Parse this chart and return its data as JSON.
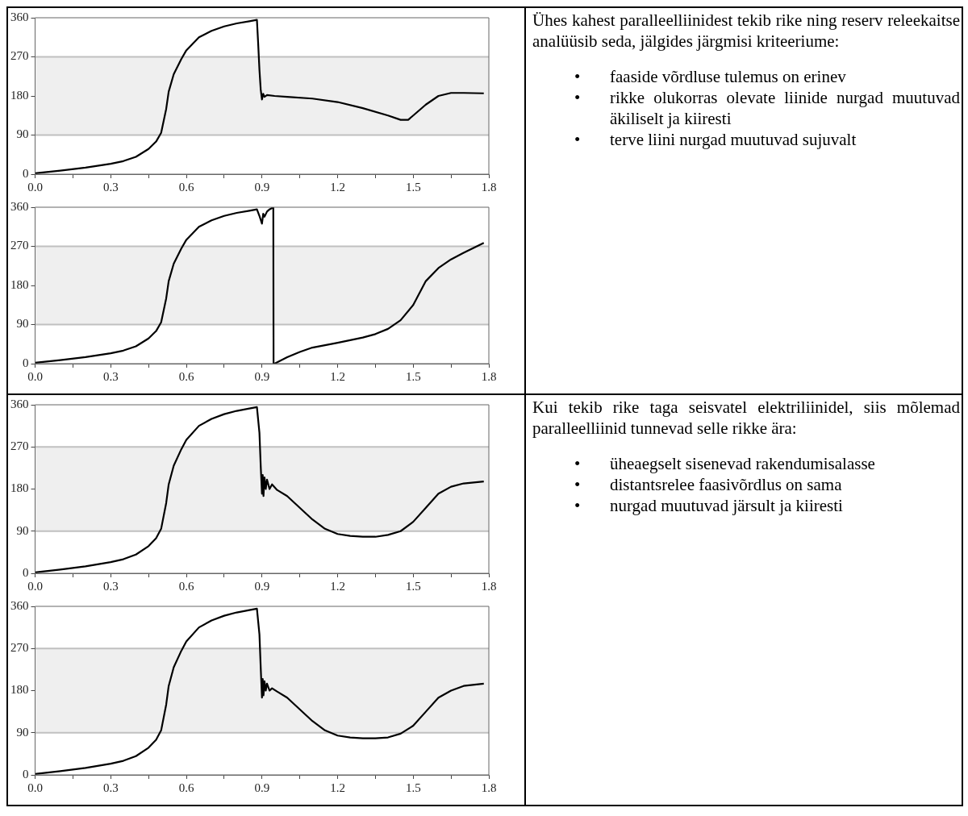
{
  "chart_data": [
    {
      "type": "line",
      "color": "#000000",
      "xlim": [
        0,
        1.8
      ],
      "ylim": [
        0,
        360
      ],
      "xticks": [
        {
          "value": 0,
          "label": "0.0"
        },
        {
          "value": 0.15,
          "label": null
        },
        0.3,
        {
          "value": 0.45,
          "label": null
        },
        0.6,
        {
          "value": 0.75,
          "label": null
        },
        0.9,
        {
          "value": 1.05,
          "label": null
        },
        1.2,
        {
          "value": 1.35,
          "label": null
        },
        1.5,
        {
          "value": 1.65,
          "label": null
        },
        1.8
      ],
      "yticks": [
        0,
        90,
        180,
        270,
        360
      ],
      "bands": [
        {
          "axis": "y",
          "from": 90,
          "to": 270,
          "color": "#c0c0c0"
        }
      ],
      "x": [
        0,
        0.1,
        0.2,
        0.3,
        0.35,
        0.4,
        0.45,
        0.48,
        0.5,
        0.52,
        0.53,
        0.55,
        0.58,
        0.6,
        0.65,
        0.7,
        0.75,
        0.8,
        0.85,
        0.88,
        0.885,
        0.89,
        0.895,
        0.9,
        0.905,
        0.91,
        0.92,
        0.95,
        1.0,
        1.1,
        1.2,
        1.3,
        1.4,
        1.45,
        1.48,
        1.5,
        1.55,
        1.6,
        1.65,
        1.7,
        1.78
      ],
      "values": [
        2,
        8,
        15,
        24,
        30,
        40,
        58,
        75,
        95,
        150,
        190,
        230,
        265,
        285,
        315,
        330,
        340,
        347,
        352,
        355,
        300,
        240,
        195,
        172,
        185,
        178,
        182,
        180,
        178,
        174,
        166,
        152,
        135,
        125,
        125,
        135,
        160,
        180,
        187,
        187,
        186
      ]
    },
    {
      "type": "line",
      "color": "#000000",
      "xlim": [
        0,
        1.8
      ],
      "ylim": [
        0,
        360
      ],
      "xticks": [
        {
          "value": 0,
          "label": "0.0"
        },
        {
          "value": 0.15,
          "label": null
        },
        0.3,
        {
          "value": 0.45,
          "label": null
        },
        0.6,
        {
          "value": 0.75,
          "label": null
        },
        0.9,
        {
          "value": 1.05,
          "label": null
        },
        1.2,
        {
          "value": 1.35,
          "label": null
        },
        1.5,
        {
          "value": 1.65,
          "label": null
        },
        1.8
      ],
      "yticks": [
        0,
        90,
        180,
        270,
        360
      ],
      "bands": [
        {
          "axis": "y",
          "from": 90,
          "to": 270,
          "color": "#c0c0c0"
        }
      ],
      "x": [
        0,
        0.1,
        0.2,
        0.3,
        0.35,
        0.4,
        0.45,
        0.48,
        0.5,
        0.52,
        0.53,
        0.55,
        0.58,
        0.6,
        0.65,
        0.7,
        0.75,
        0.8,
        0.85,
        0.88,
        0.89,
        0.9,
        0.905,
        0.91,
        0.92,
        0.93,
        0.945,
        0.946,
        0.95,
        1.0,
        1.05,
        1.1,
        1.2,
        1.3,
        1.35,
        1.4,
        1.45,
        1.5,
        1.55,
        1.6,
        1.65,
        1.7,
        1.78
      ],
      "values": [
        2,
        8,
        15,
        24,
        30,
        40,
        58,
        75,
        95,
        150,
        190,
        230,
        265,
        285,
        315,
        330,
        340,
        347,
        352,
        355,
        340,
        322,
        345,
        338,
        350,
        355,
        360,
        0,
        0,
        15,
        27,
        37,
        48,
        60,
        68,
        80,
        100,
        135,
        190,
        220,
        240,
        255,
        278
      ]
    },
    {
      "type": "other",
      "title": "Ühes kahest paralleelliinidest tekib rike ning reserv releekaitse analüüsib seda, jälgides järgmisi kriteeriume:",
      "annotations": [
        "• faaside võrdluse tulemus on erinev",
        "• rikke olukorras olevate liinide nurgad muutuvad äkiliselt ja kiiresti",
        "• terve liini nurgad muutuvad sujuvalt"
      ]
    },
    {
      "type": "line",
      "color": "#000000",
      "xlim": [
        0,
        1.8
      ],
      "ylim": [
        0,
        360
      ],
      "xticks": [
        {
          "value": 0,
          "label": "0.0"
        },
        {
          "value": 0.15,
          "label": null
        },
        0.3,
        {
          "value": 0.45,
          "label": null
        },
        0.6,
        {
          "value": 0.75,
          "label": null
        },
        0.9,
        {
          "value": 1.05,
          "label": null
        },
        1.2,
        {
          "value": 1.35,
          "label": null
        },
        1.5,
        {
          "value": 1.65,
          "label": null
        },
        1.8
      ],
      "yticks": [
        0,
        90,
        180,
        270,
        360
      ],
      "bands": [
        {
          "axis": "y",
          "from": 90,
          "to": 270,
          "color": "#c0c0c0"
        }
      ],
      "x": [
        0,
        0.1,
        0.2,
        0.3,
        0.35,
        0.4,
        0.45,
        0.48,
        0.5,
        0.52,
        0.53,
        0.55,
        0.58,
        0.6,
        0.65,
        0.7,
        0.75,
        0.8,
        0.85,
        0.88,
        0.89,
        0.895,
        0.9,
        0.903,
        0.906,
        0.91,
        0.915,
        0.92,
        0.93,
        0.94,
        0.96,
        1.0,
        1.05,
        1.1,
        1.15,
        1.2,
        1.25,
        1.3,
        1.35,
        1.4,
        1.45,
        1.5,
        1.55,
        1.6,
        1.65,
        1.7,
        1.78
      ],
      "values": [
        2,
        8,
        15,
        24,
        30,
        40,
        58,
        75,
        95,
        150,
        190,
        230,
        265,
        285,
        315,
        330,
        340,
        347,
        352,
        355,
        300,
        230,
        170,
        210,
        165,
        205,
        180,
        200,
        180,
        190,
        178,
        165,
        140,
        115,
        95,
        84,
        80,
        78,
        78,
        82,
        90,
        110,
        140,
        170,
        185,
        192,
        196
      ]
    },
    {
      "type": "line",
      "color": "#000000",
      "xlim": [
        0,
        1.8
      ],
      "ylim": [
        0,
        360
      ],
      "xticks": [
        {
          "value": 0,
          "label": "0.0"
        },
        {
          "value": 0.15,
          "label": null
        },
        0.3,
        {
          "value": 0.45,
          "label": null
        },
        0.6,
        {
          "value": 0.75,
          "label": null
        },
        0.9,
        {
          "value": 1.05,
          "label": null
        },
        1.2,
        {
          "value": 1.35,
          "label": null
        },
        1.5,
        {
          "value": 1.65,
          "label": null
        },
        1.8
      ],
      "yticks": [
        0,
        90,
        180,
        270,
        360
      ],
      "bands": [
        {
          "axis": "y",
          "from": 90,
          "to": 270,
          "color": "#c0c0c0"
        }
      ],
      "x": [
        0,
        0.1,
        0.2,
        0.3,
        0.35,
        0.4,
        0.45,
        0.48,
        0.5,
        0.52,
        0.53,
        0.55,
        0.58,
        0.6,
        0.65,
        0.7,
        0.75,
        0.8,
        0.85,
        0.88,
        0.89,
        0.895,
        0.9,
        0.903,
        0.906,
        0.91,
        0.915,
        0.92,
        0.93,
        0.94,
        0.96,
        1.0,
        1.05,
        1.1,
        1.15,
        1.2,
        1.25,
        1.3,
        1.35,
        1.4,
        1.45,
        1.5,
        1.55,
        1.6,
        1.65,
        1.7,
        1.78
      ],
      "values": [
        2,
        8,
        15,
        24,
        30,
        40,
        58,
        75,
        95,
        150,
        190,
        230,
        265,
        285,
        315,
        330,
        340,
        347,
        352,
        355,
        300,
        230,
        165,
        205,
        170,
        200,
        180,
        195,
        180,
        185,
        178,
        165,
        140,
        115,
        95,
        84,
        80,
        78,
        78,
        80,
        88,
        105,
        135,
        165,
        180,
        190,
        195
      ]
    },
    {
      "type": "other",
      "title": "Kui tekib rike taga seisvatel elektriliinidel, siis mõlemad paralleelliinid tunnevad selle rikke ära:",
      "annotations": [
        "• üheaegselt sisenevad rakendumisalasse",
        "• distantsrelee faasivõrdlus on sama",
        "• nurgad muutuvad järsult ja kiiresti"
      ]
    }
  ]
}
